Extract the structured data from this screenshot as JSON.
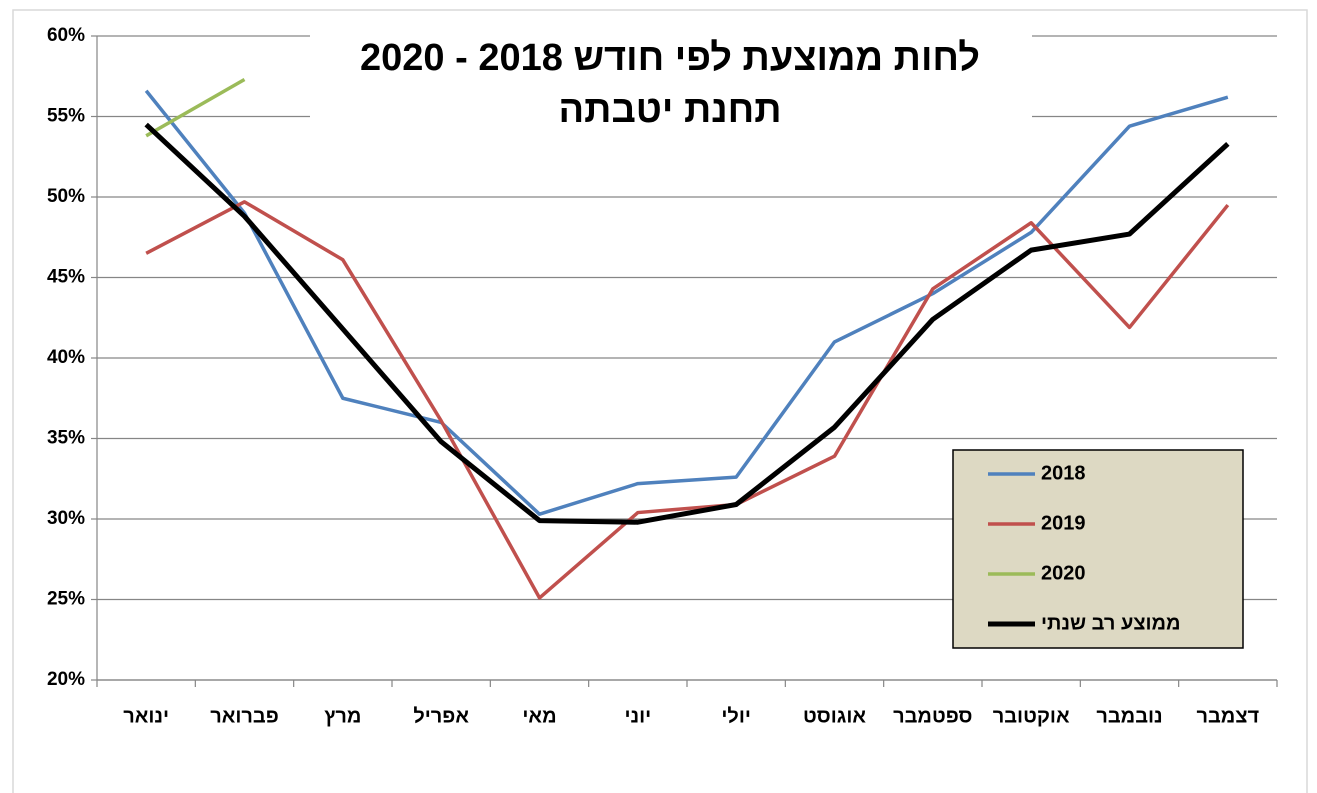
{
  "chart_data": {
    "type": "line",
    "title": [
      "לחות ממוצעת לפי חודש 2018 - 2020",
      "תחנת יטבתה"
    ],
    "categories": [
      "ינואר",
      "פברואר",
      "מרץ",
      "אפריל",
      "מאי",
      "יוני",
      "יולי",
      "אוגוסט",
      "ספטמבר",
      "אוקטובר",
      "נובמבר",
      "דצמבר"
    ],
    "series": [
      {
        "name": "2018",
        "color": "#4f81bd",
        "values": [
          56.6,
          49,
          37.5,
          36,
          30.3,
          32.2,
          32.6,
          41,
          44,
          47.8,
          54.4,
          56.2
        ]
      },
      {
        "name": "2019",
        "color": "#c0504d",
        "values": [
          46.5,
          49.7,
          46.1,
          36.1,
          25.1,
          30.4,
          30.9,
          33.9,
          44.3,
          48.4,
          41.9,
          49.5
        ]
      },
      {
        "name": "2020",
        "color": "#9bbb59",
        "values": [
          53.8,
          57.3,
          null,
          null,
          null,
          null,
          null,
          null,
          null,
          null,
          null,
          null
        ]
      },
      {
        "name": "ממוצע רב שנתי",
        "color": "#000000",
        "values": [
          54.5,
          48.8,
          41.8,
          34.8,
          29.9,
          29.8,
          30.9,
          35.7,
          42.4,
          46.7,
          47.7,
          53.3
        ]
      }
    ],
    "ylim": [
      20,
      60
    ],
    "yticks": [
      {
        "value": 20,
        "label": "20%"
      },
      {
        "value": 25,
        "label": "25%"
      },
      {
        "value": 30,
        "label": "30%"
      },
      {
        "value": 35,
        "label": "35%"
      },
      {
        "value": 40,
        "label": "40%"
      },
      {
        "value": 45,
        "label": "45%"
      },
      {
        "value": 50,
        "label": "50%"
      },
      {
        "value": 55,
        "label": "55%"
      },
      {
        "value": 60,
        "label": "60%"
      }
    ],
    "grid": true,
    "legend": "lower right"
  }
}
